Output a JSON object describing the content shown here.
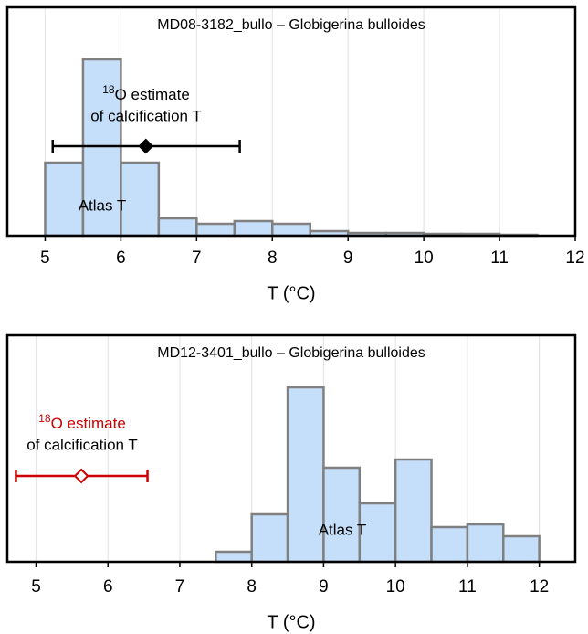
{
  "chart_data": [
    {
      "type": "histogram",
      "title": "MD08-3182_bullo – Globigerina bulloides",
      "xlabel": "T (°C)",
      "bins": [
        5,
        5.5,
        6,
        6.5,
        7,
        7.5,
        8,
        8.5,
        9,
        9.5,
        10,
        10.5,
        11,
        11.5
      ],
      "values": [
        80,
        193,
        80,
        19,
        13,
        16,
        13,
        5,
        3,
        3,
        2,
        2,
        1
      ],
      "color": "#c5dffa",
      "edge_color": "#808080",
      "xlim": [
        4.5,
        12
      ],
      "xticks": [
        5,
        6,
        7,
        8,
        9,
        10,
        11,
        12
      ],
      "ylim": [
        0,
        250
      ],
      "grid": true,
      "bar_label": "Atlas T",
      "annotation_sup": "18",
      "annotation_lines": [
        "O estimate",
        "of calcification T"
      ],
      "estimate": {
        "value": 6.33,
        "low": 5.1,
        "high": 7.57,
        "color": "#000000",
        "filled": true
      }
    },
    {
      "type": "histogram",
      "title": "MD12-3401_bullo – Globigerina bulloides",
      "xlabel": "T (°C)",
      "bins": [
        7.5,
        8,
        8.5,
        9,
        9.5,
        10,
        10.5,
        11,
        11.5,
        12
      ],
      "values": [
        11,
        52,
        191,
        103,
        64,
        112,
        38,
        41,
        28
      ],
      "color": "#c5dffa",
      "edge_color": "#808080",
      "xlim": [
        4.6,
        12.5
      ],
      "xticks": [
        5,
        6,
        7,
        8,
        9,
        10,
        11,
        12
      ],
      "ylim": [
        0,
        248
      ],
      "grid": true,
      "bar_label": "Atlas T",
      "annotation_sup": "18",
      "annotation_lines": [
        "O estimate",
        "of calcification T"
      ],
      "estimate": {
        "value": 5.63,
        "low": 4.72,
        "high": 6.55,
        "color": "#cc0000",
        "filled": false
      }
    }
  ]
}
